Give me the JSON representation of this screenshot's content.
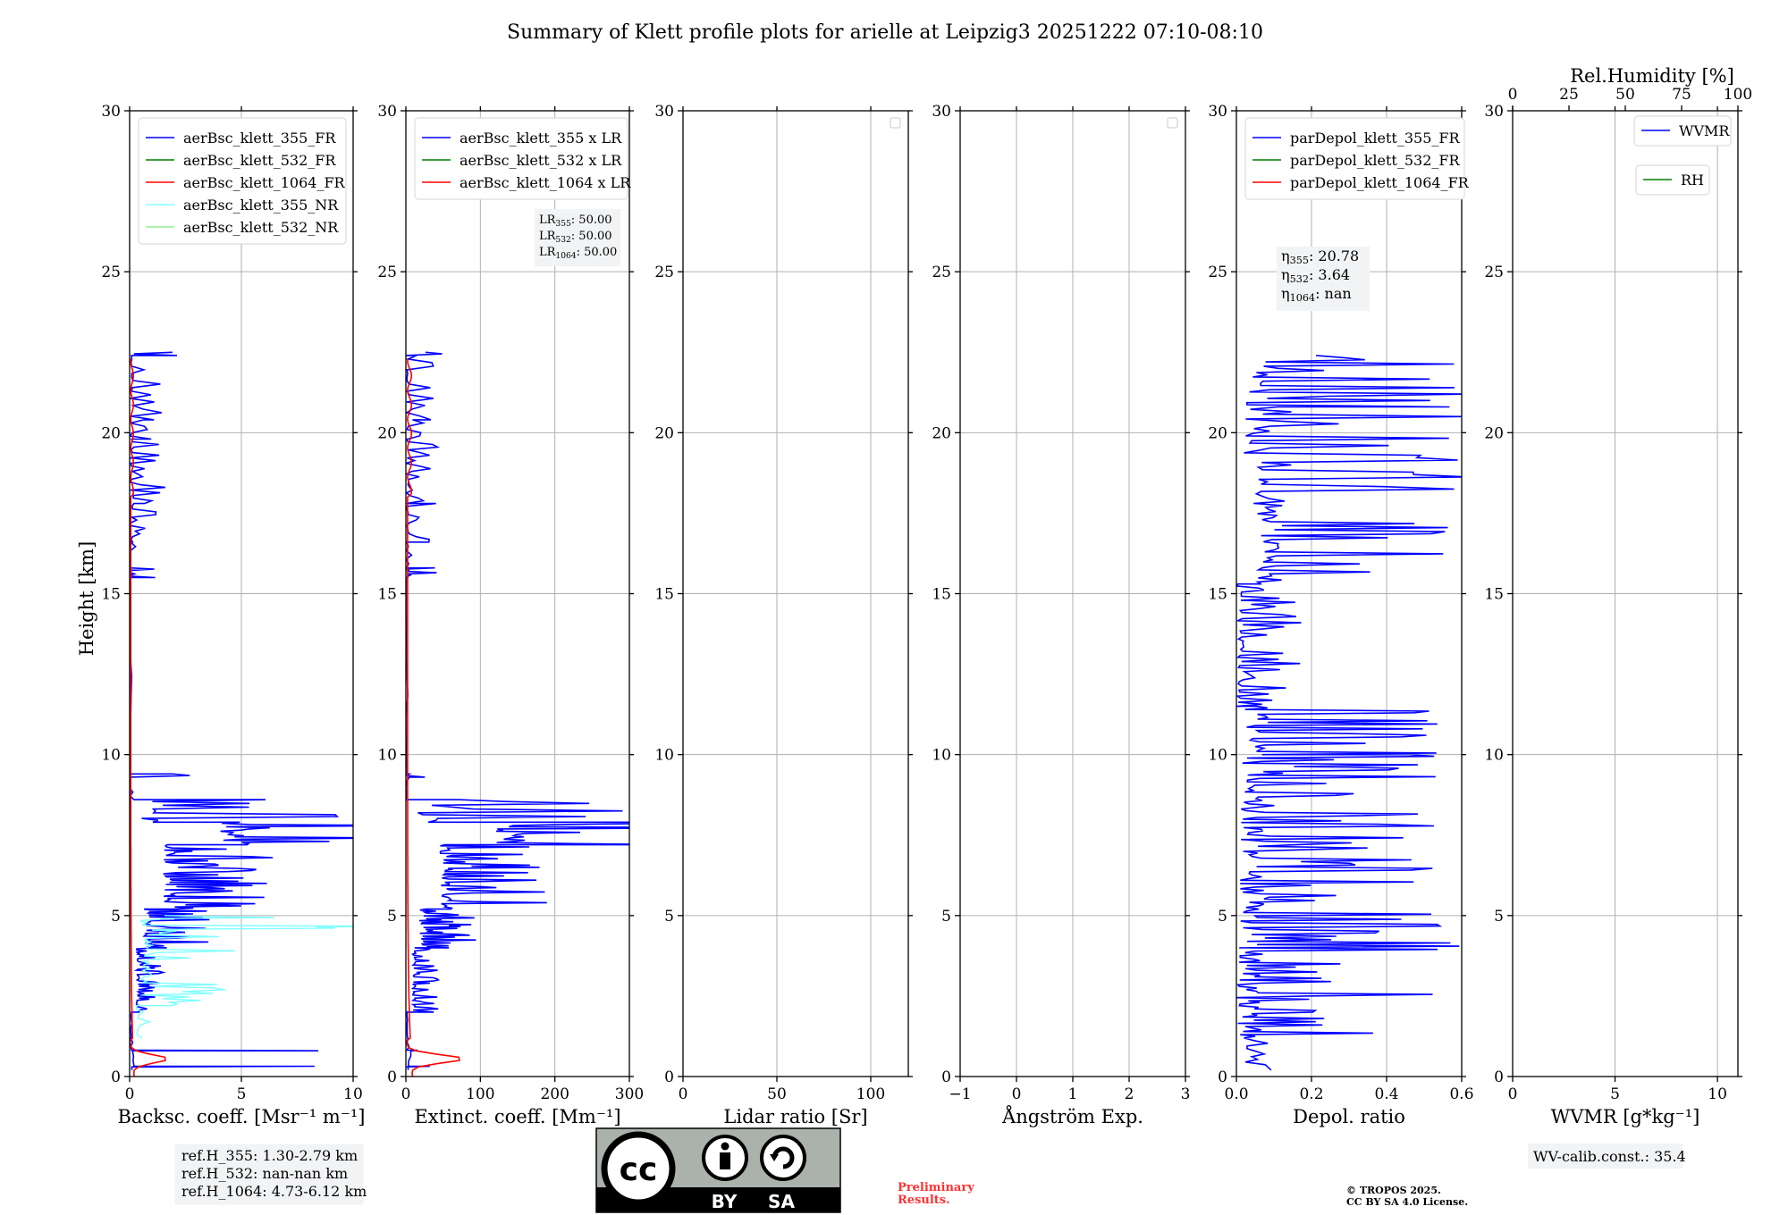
{
  "figure": {
    "title": "Summary of Klett profile plots for arielle at Leipzig3 20251222 07:10-08:10",
    "ylabel": "Height [km]",
    "ylim": [
      0,
      30
    ],
    "yticks": [
      0,
      5,
      10,
      15,
      20,
      25,
      30
    ]
  },
  "chart_data": [
    {
      "id": "bsc",
      "type": "line",
      "xlabel": "Backsc. coeff. [Msr⁻¹ m⁻¹]",
      "xlim": [
        0,
        10
      ],
      "xticks": [
        0,
        5,
        10
      ],
      "legend_position": "top-left",
      "series": [
        {
          "name": "aerBsc_klett_355_FR",
          "color": "#0000ff"
        },
        {
          "name": "aerBsc_klett_532_FR",
          "color": "#008000"
        },
        {
          "name": "aerBsc_klett_1064_FR",
          "color": "#ff0000"
        },
        {
          "name": "aerBsc_klett_355_NR",
          "color": "#80ffff"
        },
        {
          "name": "aerBsc_klett_532_NR",
          "color": "#90ee90"
        }
      ],
      "reference_heights": [
        "ref.H_355: 1.30-2.79 km",
        "ref.H_532: nan-nan km",
        "ref.H_1064: 4.73-6.12 km"
      ]
    },
    {
      "id": "ext",
      "type": "line",
      "xlabel": "Extinct. coeff. [Mm⁻¹]",
      "xlim": [
        0,
        300
      ],
      "xticks": [
        0,
        100,
        200,
        300
      ],
      "legend_position": "top-left",
      "series": [
        {
          "name": "aerBsc_klett_355 x LR",
          "color": "#0000ff"
        },
        {
          "name": "aerBsc_klett_532 x LR",
          "color": "#008000"
        },
        {
          "name": "aerBsc_klett_1064 x LR",
          "color": "#ff0000"
        }
      ],
      "lidar_ratios": [
        {
          "label": "LR",
          "sub": "355",
          "value": ": 50.00"
        },
        {
          "label": "LR",
          "sub": "532",
          "value": ": 50.00"
        },
        {
          "label": "LR",
          "sub": "1064",
          "value": ": 50.00"
        }
      ]
    },
    {
      "id": "lr",
      "type": "line",
      "xlabel": "Lidar ratio [Sr]",
      "xlim": [
        0,
        120
      ],
      "xticks": [
        0,
        50,
        100
      ],
      "series": []
    },
    {
      "id": "ang",
      "type": "line",
      "xlabel": "Ångström Exp.",
      "xlim": [
        -1,
        3
      ],
      "xticks": [
        -1,
        0,
        1,
        2,
        3
      ],
      "series": []
    },
    {
      "id": "dep",
      "type": "line",
      "xlabel": "Depol. ratio",
      "xlim": [
        0,
        0.6
      ],
      "xticks": [
        0.0,
        0.2,
        0.4,
        0.6
      ],
      "legend_position": "top-left",
      "series": [
        {
          "name": "parDepol_klett_355_FR",
          "color": "#0000ff"
        },
        {
          "name": "parDepol_klett_532_FR",
          "color": "#008000"
        },
        {
          "name": "parDepol_klett_1064_FR",
          "color": "#ff0000"
        }
      ],
      "eta": [
        {
          "label": "η",
          "sub": "355",
          "value": ": 20.78"
        },
        {
          "label": "η",
          "sub": "532",
          "value": ": 3.64"
        },
        {
          "label": "η",
          "sub": "1064",
          "value": ": nan"
        }
      ]
    },
    {
      "id": "wv",
      "type": "line",
      "xlabel": "WVMR [g*kg⁻¹]",
      "xlim": [
        0,
        11
      ],
      "xticks": [
        0,
        5,
        10
      ],
      "top_xlabel": "Rel.Humidity [%]",
      "top_xlim": [
        0,
        100
      ],
      "top_xticks": [
        0,
        25,
        50,
        75,
        100
      ],
      "legend_position": "top-right",
      "series": [
        {
          "name": "WVMR",
          "color": "#0000ff"
        },
        {
          "name": "RH",
          "color": "#008000"
        }
      ],
      "calibration": "WV-calib.const.: 35.4"
    }
  ],
  "footer": {
    "license_badge": {
      "cc": "cc",
      "by": "BY",
      "sa": "SA"
    },
    "preliminary": [
      "Preliminary",
      "Results."
    ],
    "copyright": [
      "© TROPOS 2025.",
      "CC BY SA 4.0 License."
    ]
  },
  "colors": {
    "blue": "#0000ff",
    "red": "#ff0000",
    "cyan": "#80ffff",
    "grid": "#b0b0b0",
    "preliminary": "#ff3333",
    "badge": "#aab2ab"
  }
}
